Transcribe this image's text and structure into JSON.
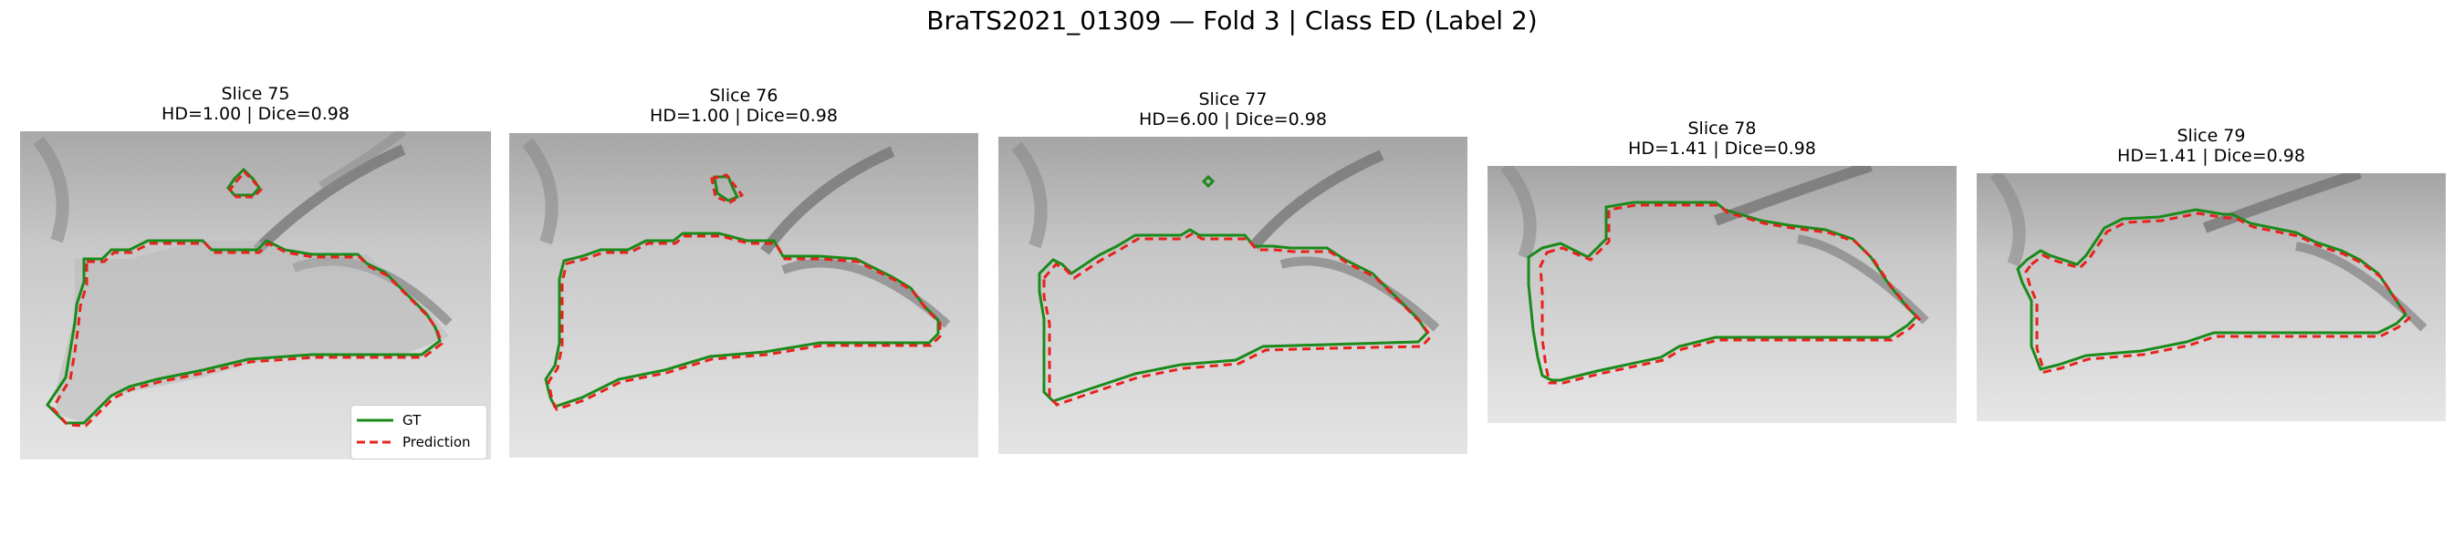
{
  "figure": {
    "title": "BraTS2021_01309 — Fold 3 | Class ED (Label 2)"
  },
  "panels": [
    {
      "slice": "Slice 75",
      "metrics": "HD=1.00 | Dice=0.98"
    },
    {
      "slice": "Slice 76",
      "metrics": "HD=1.00 | Dice=0.98"
    },
    {
      "slice": "Slice 77",
      "metrics": "HD=6.00 | Dice=0.98"
    },
    {
      "slice": "Slice 78",
      "metrics": "HD=1.41 | Dice=0.98"
    },
    {
      "slice": "Slice 79",
      "metrics": "HD=1.41 | Dice=0.98"
    }
  ],
  "legend": {
    "gt_label": "GT",
    "pred_label": "Prediction"
  },
  "colors": {
    "gt": "#1a8a1a",
    "prediction": "#e8211c",
    "background": "#c9c9c9"
  }
}
